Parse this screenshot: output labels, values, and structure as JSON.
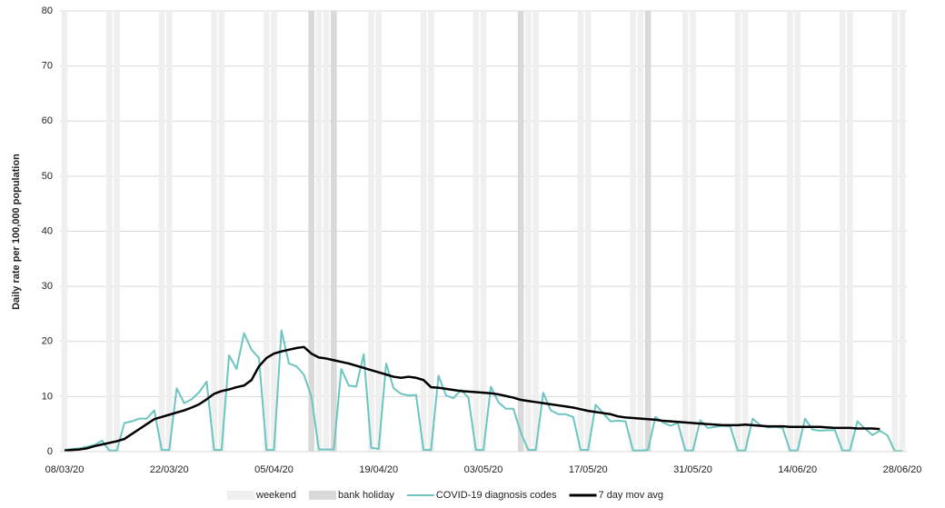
{
  "chart_data": {
    "type": "line",
    "y_label": "Daily rate per 100,000 population",
    "categories": [
      "08/03/20",
      null,
      null,
      null,
      null,
      null,
      null,
      null,
      null,
      null,
      null,
      null,
      null,
      null,
      "22/03/20",
      null,
      null,
      null,
      null,
      null,
      null,
      null,
      null,
      null,
      null,
      null,
      null,
      null,
      "05/04/20",
      null,
      null,
      null,
      null,
      null,
      null,
      null,
      null,
      null,
      null,
      null,
      null,
      null,
      "19/04/20",
      null,
      null,
      null,
      null,
      null,
      null,
      null,
      null,
      null,
      null,
      null,
      null,
      null,
      "03/05/20",
      null,
      null,
      null,
      null,
      null,
      null,
      null,
      null,
      null,
      null,
      null,
      null,
      null,
      "17/05/20",
      null,
      null,
      null,
      null,
      null,
      null,
      null,
      null,
      null,
      null,
      null,
      null,
      null,
      "31/05/20",
      null,
      null,
      null,
      null,
      null,
      null,
      null,
      null,
      null,
      null,
      null,
      null,
      null,
      "14/06/20",
      null,
      null,
      null,
      null,
      null,
      null,
      null,
      null,
      null,
      null,
      null,
      null,
      null,
      "28/06/20"
    ],
    "series": [
      {
        "name": "weekend",
        "type": "bar",
        "color": "#efefef",
        "values": [
          80,
          null,
          null,
          null,
          null,
          null,
          80,
          80,
          null,
          null,
          null,
          null,
          null,
          80,
          80,
          null,
          null,
          null,
          null,
          null,
          80,
          80,
          null,
          null,
          null,
          null,
          null,
          80,
          80,
          null,
          null,
          null,
          null,
          null,
          80,
          80,
          null,
          null,
          null,
          null,
          null,
          80,
          80,
          null,
          null,
          null,
          null,
          null,
          80,
          80,
          null,
          null,
          null,
          null,
          null,
          80,
          80,
          null,
          null,
          null,
          null,
          null,
          80,
          80,
          null,
          null,
          null,
          null,
          null,
          80,
          80,
          null,
          null,
          null,
          null,
          null,
          80,
          80,
          null,
          null,
          null,
          null,
          null,
          80,
          80,
          null,
          null,
          null,
          null,
          null,
          80,
          80,
          null,
          null,
          null,
          null,
          null,
          80,
          80,
          null,
          null,
          null,
          null,
          null,
          80,
          80,
          null,
          null,
          null,
          null,
          null,
          80,
          80
        ]
      },
      {
        "name": "bank holiday",
        "type": "bar",
        "color": "#d9d9d9",
        "values": [
          null,
          null,
          null,
          null,
          null,
          null,
          null,
          null,
          null,
          null,
          null,
          null,
          null,
          null,
          null,
          null,
          null,
          null,
          null,
          null,
          null,
          null,
          null,
          null,
          null,
          null,
          null,
          null,
          null,
          null,
          null,
          null,
          null,
          80,
          null,
          null,
          80,
          null,
          null,
          null,
          null,
          null,
          null,
          null,
          null,
          null,
          null,
          null,
          null,
          null,
          null,
          null,
          null,
          null,
          null,
          null,
          null,
          null,
          null,
          null,
          null,
          80,
          null,
          null,
          null,
          null,
          null,
          null,
          null,
          null,
          null,
          null,
          null,
          null,
          null,
          null,
          null,
          null,
          80,
          null,
          null,
          null,
          null,
          null,
          null,
          null,
          null,
          null,
          null,
          null,
          null,
          null,
          null,
          null,
          null,
          null,
          null,
          null,
          null,
          null,
          null,
          null,
          null,
          null,
          null,
          null,
          null,
          null,
          null,
          null,
          null,
          null,
          null
        ]
      },
      {
        "name": "COVID-19 diagnosis codes",
        "type": "line",
        "color": "#6cc5c0",
        "values": [
          0.3,
          0.5,
          0.6,
          0.9,
          1.2,
          2.0,
          0.2,
          0.2,
          5.2,
          5.5,
          6.0,
          6.0,
          7.5,
          0.3,
          0.3,
          11.5,
          8.8,
          9.5,
          10.8,
          12.7,
          0.3,
          0.3,
          17.5,
          15.0,
          21.5,
          18.5,
          17.0,
          0.3,
          0.3,
          22.0,
          16.0,
          15.5,
          14.0,
          10.0,
          0.4,
          0.4,
          0.4,
          15.0,
          12.0,
          11.8,
          17.7,
          0.7,
          0.5,
          16.0,
          11.5,
          10.5,
          10.2,
          10.3,
          0.3,
          0.3,
          13.8,
          10.2,
          9.7,
          11.2,
          9.8,
          0.3,
          0.3,
          11.8,
          9.0,
          7.8,
          7.8,
          3.5,
          0.3,
          0.3,
          10.7,
          7.5,
          6.8,
          6.8,
          6.3,
          0.3,
          0.3,
          8.5,
          7.0,
          5.5,
          5.6,
          5.5,
          0.2,
          0.2,
          0.3,
          6.3,
          5.3,
          4.7,
          5.2,
          0.2,
          0.2,
          5.7,
          4.3,
          4.5,
          4.7,
          4.6,
          0.2,
          0.2,
          6.0,
          4.8,
          4.4,
          4.5,
          4.3,
          0.2,
          0.2,
          6.0,
          4.0,
          3.8,
          3.9,
          3.9,
          0.2,
          0.2,
          5.5,
          4.2,
          3.0,
          3.8,
          3.0,
          0.1,
          0.1
        ]
      },
      {
        "name": "7 day mov avg",
        "type": "line",
        "color": "#000000",
        "values": [
          0.2,
          0.3,
          0.4,
          0.6,
          1.0,
          1.3,
          1.6,
          1.9,
          2.3,
          3.2,
          4.1,
          5.0,
          5.9,
          6.3,
          6.7,
          7.1,
          7.5,
          8.0,
          8.6,
          9.5,
          10.5,
          11.0,
          11.3,
          11.7,
          12.0,
          13.0,
          15.5,
          17.0,
          17.8,
          18.2,
          18.5,
          18.8,
          19.0,
          17.8,
          17.1,
          16.9,
          16.6,
          16.3,
          16.0,
          15.6,
          15.2,
          14.8,
          14.4,
          14.0,
          13.6,
          13.4,
          13.6,
          13.4,
          13.0,
          11.7,
          11.6,
          11.4,
          11.2,
          11.0,
          10.9,
          10.8,
          10.7,
          10.6,
          10.4,
          10.1,
          9.8,
          9.4,
          9.2,
          9.0,
          8.8,
          8.6,
          8.4,
          8.2,
          8.0,
          7.7,
          7.4,
          7.2,
          7.0,
          6.8,
          6.4,
          6.2,
          6.1,
          6.0,
          5.9,
          5.8,
          5.6,
          5.5,
          5.4,
          5.3,
          5.2,
          5.1,
          5.0,
          4.9,
          4.8,
          4.8,
          4.8,
          4.9,
          4.8,
          4.7,
          4.6,
          4.6,
          4.6,
          4.5,
          4.5,
          4.5,
          4.5,
          4.5,
          4.4,
          4.3,
          4.3,
          4.3,
          4.2,
          4.2,
          4.2,
          4.1,
          null,
          null,
          null
        ]
      }
    ],
    "ylim": [
      0,
      80
    ],
    "yticks": [
      0,
      10,
      20,
      30,
      40,
      50,
      60,
      70,
      80
    ],
    "grid": true,
    "legend": "bottom"
  }
}
